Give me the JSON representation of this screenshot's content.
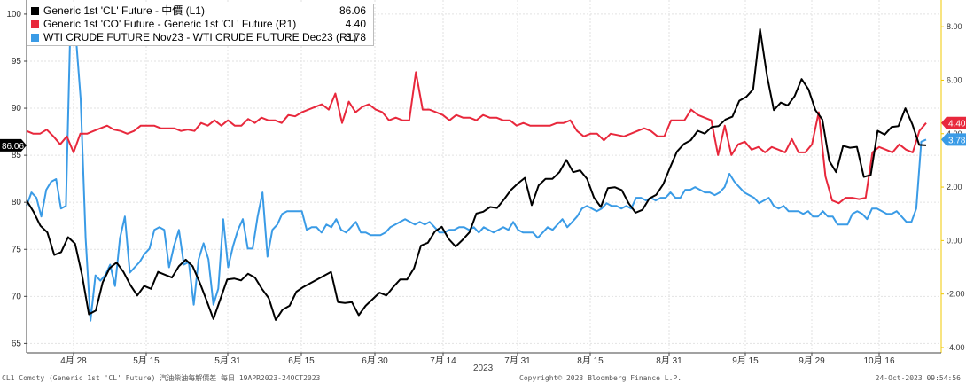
{
  "legend": [
    {
      "label": "Generic 1st 'CL' Future - 中價 (L1)",
      "value": "86.06",
      "color": "#000000"
    },
    {
      "label": "Generic 1st 'CO' Future - Generic 1st 'CL' Future (R1)",
      "value": "4.40",
      "color": "#e8283c"
    },
    {
      "label": "WTI CRUDE FUTURE Nov23 - WTI CRUDE FUTURE Dec23 (R1)",
      "value": "3.78",
      "color": "#3a9be6"
    }
  ],
  "footer": {
    "left": "CL1 Comdty (Generic 1st 'CL' Future) 汽油柴油每解價差  每日 19APR2023-24OCT2023",
    "mid": "Copyright© 2023 Bloomberg Finance L.P.",
    "right": "24-Oct-2023 09:54:56"
  },
  "chart_data": {
    "type": "line",
    "year_label": "2023",
    "x_ticks": [
      "4月 28",
      "5月 15",
      "5月 31",
      "6月 15",
      "6月 30",
      "7月 14",
      "7月 31",
      "8月 15",
      "8月 31",
      "9月 15",
      "9月 29",
      "10月 16"
    ],
    "left_axis": {
      "ticks": [
        65,
        70,
        75,
        80,
        85,
        90,
        95,
        100
      ],
      "ylim": [
        64,
        101.5
      ]
    },
    "right_axis": {
      "ticks": [
        "-4.00",
        "-2.00",
        "0.00",
        "2.00",
        "4.00",
        "6.00",
        "8.00"
      ],
      "ylim": [
        -4.2,
        9.0
      ]
    },
    "last_value_labels": {
      "left": "86.06",
      "right_red": "4.40",
      "right_blue": "3.78"
    },
    "series": [
      {
        "name": "Generic 1st 'CL' Future - 中價 (L1)",
        "axis": "left",
        "color": "#000000",
        "values": [
          80.2,
          79.0,
          77.5,
          76.8,
          74.4,
          74.7,
          76.3,
          75.6,
          72.3,
          68.1,
          68.5,
          71.5,
          73.0,
          73.6,
          72.6,
          71.2,
          70.1,
          71.1,
          70.8,
          72.6,
          72.3,
          72.0,
          73.2,
          73.9,
          73.2,
          71.5,
          69.6,
          67.6,
          69.7,
          71.8,
          71.9,
          71.7,
          72.4,
          72.0,
          70.8,
          69.8,
          67.5,
          68.6,
          69.0,
          70.5,
          71.0,
          71.4,
          71.8,
          72.2,
          72.6,
          69.4,
          69.3,
          69.4,
          68.0,
          69.0,
          69.7,
          70.4,
          70.1,
          71.0,
          71.8,
          71.8,
          73.0,
          75.4,
          75.7,
          76.9,
          77.4,
          76.1,
          75.3,
          76.0,
          76.8,
          78.8,
          79.0,
          79.5,
          79.4,
          80.3,
          81.3,
          82.0,
          82.6,
          79.7,
          81.8,
          82.5,
          82.5,
          83.2,
          84.5,
          83.2,
          83.4,
          82.5,
          80.5,
          79.5,
          81.5,
          81.6,
          81.3,
          79.9,
          78.9,
          79.2,
          80.4,
          80.8,
          81.9,
          83.7,
          85.4,
          86.2,
          86.6,
          87.6,
          87.3,
          88.0,
          88.1,
          88.8,
          89.1,
          90.8,
          91.2,
          92.0,
          98.4,
          93.5,
          89.8,
          90.6,
          90.3,
          91.3,
          93.1,
          92.0,
          89.8,
          88.8,
          84.4,
          83.2,
          86.0,
          85.8,
          85.9,
          82.7,
          82.9,
          87.6,
          87.2,
          88.0,
          88.1,
          90.0,
          88.3,
          86.1,
          86.06
        ]
      },
      {
        "name": "Generic 1st 'CO' Future - Generic 1st 'CL' Future (R1)",
        "axis": "right",
        "color": "#e8283c",
        "values": [
          4.1,
          4.0,
          4.0,
          4.15,
          3.9,
          3.6,
          3.9,
          3.3,
          4.0,
          4.0,
          4.1,
          4.2,
          4.3,
          4.15,
          4.1,
          4.0,
          4.1,
          4.3,
          4.3,
          4.3,
          4.2,
          4.2,
          4.2,
          4.1,
          4.15,
          4.1,
          4.4,
          4.3,
          4.5,
          4.3,
          4.5,
          4.3,
          4.3,
          4.55,
          4.4,
          4.6,
          4.5,
          4.5,
          4.4,
          4.7,
          4.65,
          4.8,
          4.9,
          5.0,
          5.1,
          4.9,
          5.5,
          4.4,
          5.2,
          4.8,
          5.0,
          5.1,
          4.9,
          4.8,
          4.5,
          4.6,
          4.5,
          4.5,
          6.3,
          4.9,
          4.9,
          4.8,
          4.7,
          4.5,
          4.7,
          4.6,
          4.6,
          4.5,
          4.7,
          4.6,
          4.6,
          4.5,
          4.5,
          4.3,
          4.4,
          4.3,
          4.3,
          4.3,
          4.3,
          4.4,
          4.4,
          4.5,
          4.1,
          3.9,
          4.0,
          4.0,
          3.75,
          4.0,
          3.95,
          3.9,
          4.0,
          4.1,
          4.2,
          4.1,
          3.9,
          3.9,
          4.5,
          4.5,
          4.5,
          4.9,
          4.7,
          4.6,
          4.5,
          3.2,
          4.3,
          3.2,
          3.6,
          3.7,
          3.4,
          3.5,
          3.3,
          3.5,
          3.4,
          3.3,
          3.8,
          3.3,
          3.3,
          3.6,
          4.8,
          2.4,
          1.5,
          1.4,
          1.6,
          1.6,
          1.55,
          1.6,
          3.3,
          3.5,
          3.4,
          3.3,
          3.6,
          3.4,
          3.3,
          4.1,
          4.4
        ]
      },
      {
        "name": "WTI CRUDE FUTURE Nov23 - WTI CRUDE FUTURE Dec23 (R1)",
        "axis": "right",
        "color": "#3a9be6",
        "values": [
          1.3,
          1.8,
          1.6,
          0.9,
          1.9,
          2.2,
          2.3,
          1.2,
          1.3,
          8.7,
          7.7,
          5.3,
          0.1,
          -3.0,
          -1.3,
          -1.5,
          -1.3,
          -0.9,
          -1.7,
          0.1,
          0.9,
          -1.2,
          -1.0,
          -0.8,
          -0.5,
          -0.3,
          0.4,
          0.5,
          0.4,
          -1.0,
          -0.2,
          0.4,
          -0.9,
          -0.8,
          -2.4,
          -0.7,
          -0.1,
          -0.7,
          -2.4,
          -1.8,
          0.8,
          -1.0,
          -0.2,
          0.4,
          0.8,
          -0.3,
          -0.3,
          0.9,
          1.8,
          -0.6,
          0.4,
          0.6,
          1.0,
          1.1,
          1.1,
          1.1,
          1.1,
          0.4,
          0.5,
          0.5,
          0.3,
          0.6,
          0.5,
          0.8,
          0.4,
          0.3,
          0.5,
          0.7,
          0.3,
          0.3,
          0.2,
          0.2,
          0.2,
          0.3,
          0.5,
          0.6,
          0.7,
          0.8,
          0.7,
          0.6,
          0.7,
          0.6,
          0.7,
          0.5,
          0.3,
          0.3,
          0.4,
          0.4,
          0.5,
          0.5,
          0.4,
          0.5,
          0.3,
          0.5,
          0.4,
          0.3,
          0.4,
          0.5,
          0.4,
          0.7,
          0.4,
          0.3,
          0.3,
          0.3,
          0.1,
          0.3,
          0.5,
          0.4,
          0.6,
          0.8,
          0.5,
          0.7,
          0.9,
          1.2,
          1.3,
          1.2,
          1.1,
          1.2,
          1.4,
          1.3,
          1.3,
          1.2,
          1.3,
          1.2,
          1.6,
          1.6,
          1.5,
          1.6,
          1.5,
          1.6,
          1.6,
          1.8,
          1.6,
          1.6,
          1.9,
          1.9,
          2.0,
          1.9,
          1.8,
          1.8,
          1.7,
          1.8,
          2.0,
          2.5,
          2.2,
          2.0,
          1.8,
          1.7,
          1.6,
          1.4,
          1.5,
          1.6,
          1.3,
          1.2,
          1.3,
          1.1,
          1.1,
          1.1,
          1.0,
          1.1,
          0.9,
          0.9,
          1.1,
          0.9,
          0.9,
          0.6,
          0.6,
          0.6,
          1.0,
          1.1,
          1.0,
          0.8,
          1.2,
          1.2,
          1.1,
          1.0,
          1.0,
          1.1,
          0.9,
          0.7,
          0.7,
          1.2,
          3.7,
          3.78
        ]
      }
    ]
  }
}
